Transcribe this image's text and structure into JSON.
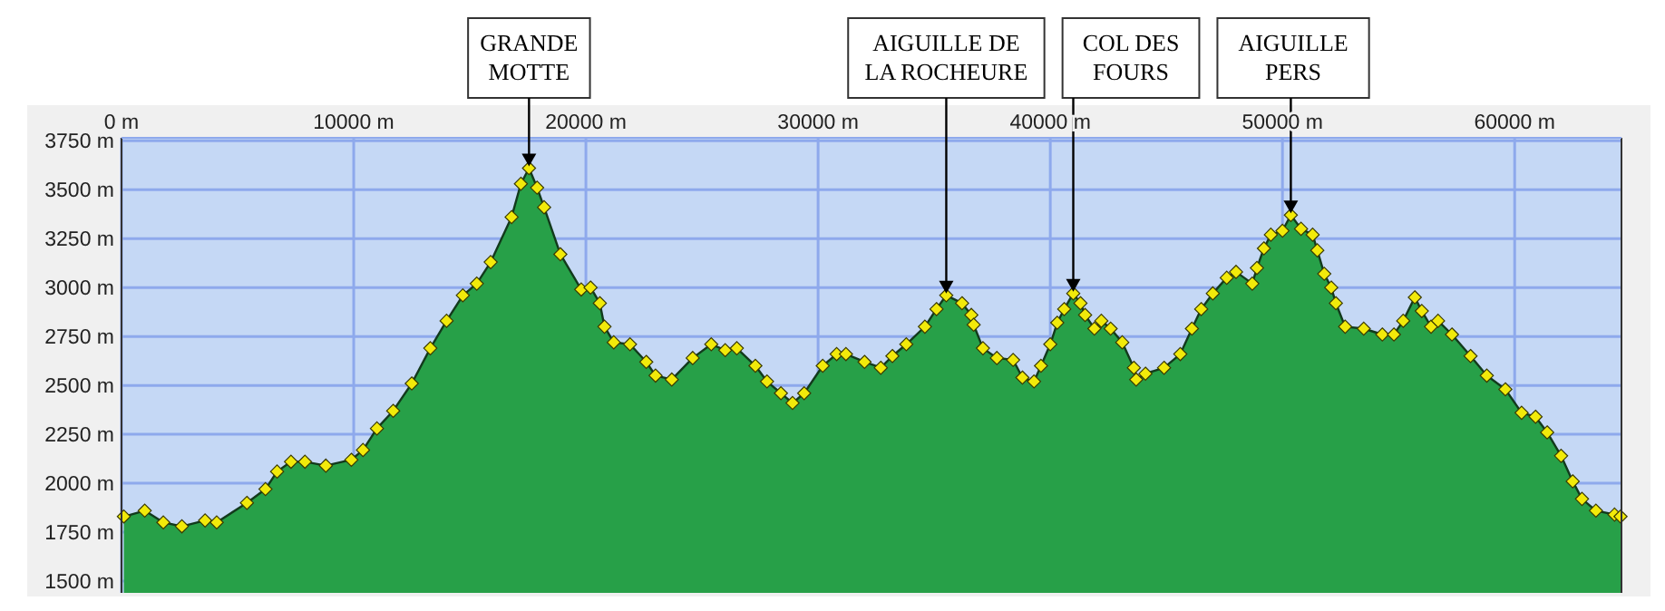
{
  "chart_data": {
    "type": "area",
    "marker": "diamond",
    "grid": true,
    "xlim": [
      0,
      64600
    ],
    "ylim": [
      1440,
      3765
    ],
    "xticks": [
      {
        "value": 0,
        "label": "0 m"
      },
      {
        "value": 10000,
        "label": "10000 m"
      },
      {
        "value": 20000,
        "label": "20000 m"
      },
      {
        "value": 30000,
        "label": "30000 m"
      },
      {
        "value": 40000,
        "label": "40000 m"
      },
      {
        "value": 50000,
        "label": "50000 m"
      },
      {
        "value": 60000,
        "label": "60000 m"
      }
    ],
    "yticks": [
      {
        "value": 1500,
        "label": "1500 m"
      },
      {
        "value": 1750,
        "label": "1750 m"
      },
      {
        "value": 2000,
        "label": "2000 m"
      },
      {
        "value": 2250,
        "label": "2250 m"
      },
      {
        "value": 2500,
        "label": "2500 m"
      },
      {
        "value": 2750,
        "label": "2750 m"
      },
      {
        "value": 3000,
        "label": "3000 m"
      },
      {
        "value": 3250,
        "label": "3250 m"
      },
      {
        "value": 3500,
        "label": "3500 m"
      },
      {
        "value": 3750,
        "label": "3750 m"
      }
    ],
    "annotations": [
      {
        "text": "GRANDE\nMOTTE",
        "x": 17550,
        "y": 3610
      },
      {
        "text": "AIGUILLE DE\nLA ROCHEURE",
        "x": 35520,
        "y": 2960
      },
      {
        "text": "COL DES\nFOURS",
        "x": 40990,
        "y": 2970
      },
      {
        "text": "AIGUILLE\nPERS",
        "x": 50360,
        "y": 3370
      }
    ],
    "series": [
      {
        "color": "#27a048",
        "x": [
          100,
          1000,
          1800,
          2600,
          3600,
          4100,
          5400,
          6200,
          6700,
          7300,
          7900,
          8800,
          9900,
          10400,
          11000,
          11700,
          12500,
          13300,
          14000,
          14700,
          15300,
          15900,
          16800,
          17200,
          17550,
          17900,
          18200,
          18900,
          19800,
          20200,
          20600,
          20800,
          21200,
          21900,
          22600,
          23000,
          23700,
          24600,
          25400,
          26000,
          26500,
          27300,
          27800,
          28400,
          28900,
          29400,
          30200,
          30800,
          31200,
          32000,
          32700,
          33200,
          33800,
          34600,
          35100,
          35520,
          36200,
          36600,
          36700,
          37100,
          37700,
          38400,
          38800,
          39300,
          39600,
          40000,
          40300,
          40600,
          40990,
          41300,
          41500,
          41900,
          42200,
          42600,
          43100,
          43600,
          43700,
          44100,
          44900,
          45600,
          46100,
          46500,
          47000,
          47600,
          48000,
          48700,
          48900,
          49200,
          49500,
          50000,
          50360,
          50800,
          51300,
          51500,
          51800,
          52100,
          52300,
          52700,
          53500,
          54300,
          54800,
          55200,
          55700,
          56000,
          56400,
          56700,
          57300,
          58100,
          58800,
          59600,
          60300,
          60900,
          61400,
          62000,
          62500,
          62900,
          63500,
          64300,
          64560
        ],
        "values": [
          1830,
          1860,
          1800,
          1780,
          1810,
          1800,
          1900,
          1970,
          2060,
          2110,
          2110,
          2090,
          2120,
          2170,
          2280,
          2370,
          2510,
          2690,
          2830,
          2960,
          3020,
          3130,
          3360,
          3530,
          3610,
          3510,
          3410,
          3170,
          2990,
          3000,
          2920,
          2800,
          2720,
          2710,
          2620,
          2550,
          2530,
          2640,
          2710,
          2680,
          2690,
          2600,
          2520,
          2460,
          2410,
          2460,
          2600,
          2660,
          2660,
          2620,
          2590,
          2650,
          2710,
          2800,
          2890,
          2960,
          2920,
          2860,
          2810,
          2690,
          2640,
          2630,
          2540,
          2520,
          2600,
          2710,
          2820,
          2890,
          2970,
          2920,
          2860,
          2790,
          2830,
          2790,
          2720,
          2590,
          2530,
          2560,
          2590,
          2660,
          2790,
          2890,
          2970,
          3050,
          3080,
          3020,
          3100,
          3200,
          3270,
          3290,
          3370,
          3300,
          3270,
          3190,
          3070,
          3000,
          2920,
          2800,
          2790,
          2760,
          2760,
          2830,
          2950,
          2880,
          2800,
          2830,
          2760,
          2650,
          2550,
          2480,
          2360,
          2340,
          2260,
          2140,
          2010,
          1920,
          1860,
          1840,
          1830
        ]
      }
    ]
  }
}
